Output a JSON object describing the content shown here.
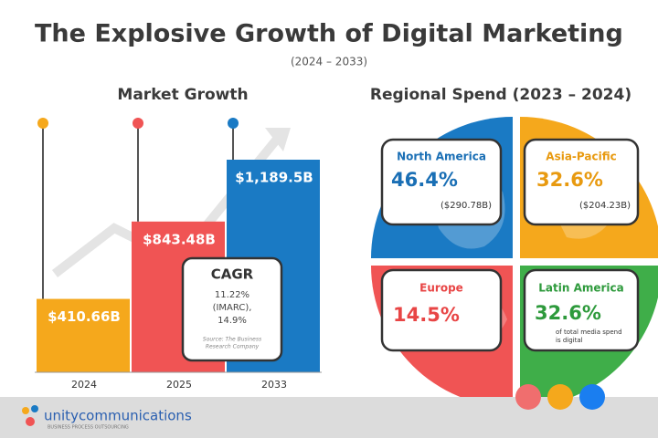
{
  "header": {
    "title": "The Explosive Growth of Digital Marketing",
    "subtitle": "(2024 – 2033)"
  },
  "chart_data": {
    "type": "bar",
    "title": "Market Growth",
    "categories": [
      "2024",
      "2025",
      "2033"
    ],
    "values": [
      410.66,
      843.48,
      1189.5
    ],
    "value_labels": [
      "$410.66B",
      "$843.48B",
      "$1,189.5B"
    ],
    "colors": [
      "#f5a81c",
      "#f05454",
      "#1a7ac4"
    ]
  },
  "cagr": {
    "title": "CAGR",
    "lines": [
      "11.22%",
      "(IMARC),",
      "14.9%"
    ],
    "source": [
      "Source: The Business",
      "Research Company"
    ]
  },
  "regional": {
    "title": "Regional Spend (2023 – 2024)",
    "regions": [
      {
        "name": "North America",
        "share": "46.4%",
        "amount": "($290.78B)"
      },
      {
        "name": "Asia-Pacific",
        "share": "32.6%",
        "amount": "($204.23B)"
      },
      {
        "name": "Europe",
        "share": "14.5%"
      },
      {
        "name": "Latin America",
        "share": "32.6%",
        "note": [
          "of total media spend",
          "is digital"
        ]
      }
    ]
  },
  "footer": {
    "brand": "unitycommunications",
    "tagline": "BUSINESS PROCESS OUTSOURCING"
  }
}
